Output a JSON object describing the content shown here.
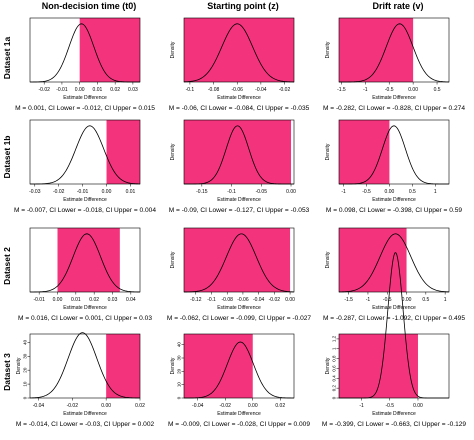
{
  "figure": {
    "column_titles": [
      "Non-decision time (t0)",
      "Starting point (z)",
      "Drift rate (v)"
    ],
    "row_titles": [
      "Dataset 1a",
      "Dataset 1b",
      "Dataset 2",
      "Dataset 3"
    ]
  },
  "chart_data": [
    {
      "type": "area",
      "row": "Dataset 1a",
      "column": "Non-decision time (t0)",
      "xlabel": "Estimate Difference",
      "ylabel": "",
      "xlim": [
        -0.028,
        0.034
      ],
      "xticks": [
        -0.02,
        -0.01,
        0.0,
        0.01,
        0.02,
        0.03
      ],
      "yticks": [],
      "density": {
        "mean": 0.001,
        "sd": 0.007
      },
      "ci_shading": {
        "from": 0.0,
        "to": 0.034,
        "color": "#f4337d"
      },
      "stats": "M = 0.001, CI Lower = -0.012, CI Upper = 0.015"
    },
    {
      "type": "area",
      "row": "Dataset 1a",
      "column": "Starting point (z)",
      "xlabel": "Estimate Difference",
      "ylabel": "Density",
      "xlim": [
        -0.105,
        -0.012
      ],
      "xticks": [
        -0.1,
        -0.08,
        -0.06,
        -0.04,
        -0.02
      ],
      "yticks": [],
      "density": {
        "mean": -0.06,
        "sd": 0.013
      },
      "ci_shading": {
        "from": -0.105,
        "to": -0.012,
        "color": "#f4337d"
      },
      "stats": "M = -0.06, CI Lower = -0.084, CI Upper = -0.035"
    },
    {
      "type": "area",
      "row": "Dataset 1a",
      "column": "Drift rate (v)",
      "xlabel": "Estimate Difference",
      "ylabel": "Density",
      "xlim": [
        -1.55,
        0.75
      ],
      "xticks": [
        -1.5,
        -1.0,
        -0.5,
        0.0,
        0.5
      ],
      "yticks": [],
      "density": {
        "mean": -0.282,
        "sd": 0.28
      },
      "ci_shading": {
        "from": -1.55,
        "to": 0.0,
        "color": "#f4337d"
      },
      "stats": "M = -0.282, CI Lower = -0.828, CI Upper = 0.274"
    },
    {
      "type": "area",
      "row": "Dataset 1b",
      "column": "Non-decision time (t0)",
      "xlabel": "Estimate Difference",
      "ylabel": "",
      "xlim": [
        -0.032,
        0.014
      ],
      "xticks": [
        -0.03,
        -0.02,
        -0.01,
        0.0,
        0.01
      ],
      "yticks": [],
      "density": {
        "mean": -0.007,
        "sd": 0.0058
      },
      "ci_shading": {
        "from": 0.0,
        "to": 0.014,
        "color": "#f4337d"
      },
      "stats": "M = -0.007, CI Lower = -0.018, CI Upper = 0.004"
    },
    {
      "type": "area",
      "row": "Dataset 1b",
      "column": "Starting point (z)",
      "xlabel": "Estimate Difference",
      "ylabel": "Density",
      "xlim": [
        -0.18,
        0.005
      ],
      "xticks": [
        -0.15,
        -0.1,
        -0.05,
        0.0
      ],
      "yticks": [],
      "density": {
        "mean": -0.09,
        "sd": 0.019
      },
      "ci_shading": {
        "from": -0.18,
        "to": 0.0,
        "color": "#f4337d"
      },
      "stats": "M = -0.09, CI Lower = -0.127, CI Upper = -0.053"
    },
    {
      "type": "area",
      "row": "Dataset 1b",
      "column": "Drift rate (v)",
      "xlabel": "Estimate Difference",
      "ylabel": "Density",
      "xlim": [
        -1.1,
        1.3
      ],
      "xticks": [
        -1.0,
        -0.5,
        0.0,
        0.5,
        1.0
      ],
      "yticks": [],
      "density": {
        "mean": 0.098,
        "sd": 0.25
      },
      "ci_shading": {
        "from": -1.1,
        "to": 0.0,
        "color": "#f4337d"
      },
      "stats": "M = 0.098, CI Lower = -0.398, CI Upper = 0.59"
    },
    {
      "type": "area",
      "row": "Dataset 2",
      "column": "Non-decision time (t0)",
      "xlabel": "Estimate Difference",
      "ylabel": "",
      "xlim": [
        -0.015,
        0.045
      ],
      "xticks": [
        -0.01,
        0.0,
        0.01,
        0.02,
        0.03,
        0.04
      ],
      "yticks": [],
      "density": {
        "mean": 0.016,
        "sd": 0.0075
      },
      "ci_shading": {
        "from": 0.0,
        "to": 0.034,
        "color": "#f4337d"
      },
      "stats": "M = 0.016, CI Lower = 0.001, CI Upper = 0.03"
    },
    {
      "type": "area",
      "row": "Dataset 2",
      "column": "Starting point (z)",
      "xlabel": "Estimate Difference",
      "ylabel": "Density",
      "xlim": [
        -0.135,
        0.005
      ],
      "xticks": [
        -0.12,
        -0.1,
        -0.08,
        -0.06,
        -0.04,
        -0.02,
        0.0
      ],
      "yticks": [],
      "density": {
        "mean": -0.062,
        "sd": 0.019
      },
      "ci_shading": {
        "from": -0.135,
        "to": 0.0,
        "color": "#f4337d"
      },
      "stats": "M = -0.062, CI Lower = -0.099, CI Upper = -0.027"
    },
    {
      "type": "area",
      "row": "Dataset 2",
      "column": "Drift rate (v)",
      "xlabel": "Estimate Difference",
      "ylabel": "Density",
      "xlim": [
        -1.75,
        1.1
      ],
      "xticks": [
        -1.5,
        -1.0,
        -0.5,
        0.0,
        0.5,
        1.0
      ],
      "yticks": [],
      "density": {
        "mean": -0.287,
        "sd": 0.4
      },
      "ci_shading": {
        "from": -1.75,
        "to": 0.0,
        "color": "#f4337d"
      },
      "stats": "M = -0.287, CI Lower = -1.092, CI Upper = 0.495"
    },
    {
      "type": "area",
      "row": "Dataset 3",
      "column": "Non-decision time (t0)",
      "xlabel": "Estimate Difference",
      "ylabel": "Density",
      "xlim": [
        -0.045,
        0.02
      ],
      "xticks": [
        -0.04,
        -0.02,
        0.0,
        0.02
      ],
      "yticks": [
        0,
        10,
        20,
        30,
        40
      ],
      "ylim": [
        0,
        46
      ],
      "density": {
        "mean": -0.014,
        "sd": 0.0085
      },
      "ci_shading": {
        "from": 0.0,
        "to": 0.02,
        "color": "#f4337d"
      },
      "stats": "M = -0.014, CI Lower = -0.03, CI Upper = 0.002"
    },
    {
      "type": "area",
      "row": "Dataset 3",
      "column": "Starting point (z)",
      "xlabel": "Estimate Difference",
      "ylabel": "Density",
      "xlim": [
        -0.05,
        0.03
      ],
      "xticks": [
        -0.04,
        -0.02,
        0.0,
        0.02
      ],
      "yticks": [
        0,
        10,
        20,
        30,
        40
      ],
      "ylim": [
        0,
        48
      ],
      "density": {
        "mean": -0.009,
        "sd": 0.0095
      },
      "ci_shading": {
        "from": -0.05,
        "to": 0.0,
        "color": "#f4337d"
      },
      "stats": "M = -0.009, CI Lower = -0.028, CI Upper = 0.009"
    },
    {
      "type": "area",
      "row": "Dataset 3",
      "column": "Drift rate (v)",
      "xlabel": "Estimate Difference",
      "ylabel": "Density",
      "xlim": [
        -1.4,
        0.55
      ],
      "xticks": [
        -1.0,
        -0.5,
        0.0
      ],
      "yticks": [
        0.0,
        0.2,
        0.4,
        0.6,
        0.8,
        1.0,
        1.2
      ],
      "ylim": [
        0,
        1.3
      ],
      "density": {
        "mean": -0.399,
        "sd": 0.135
      },
      "ci_shading": {
        "from": -1.4,
        "to": 0.0,
        "color": "#f4337d"
      },
      "stats": "M = -0.399, CI Lower = -0.663, CI Upper = -0.129"
    }
  ]
}
